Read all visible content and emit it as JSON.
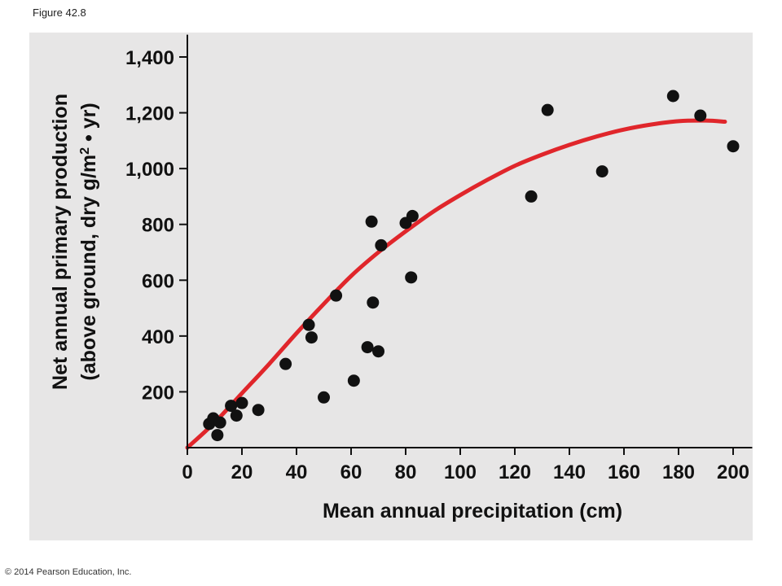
{
  "figure_label": "Figure 42.8",
  "copyright": "© 2014 Pearson Education, Inc.",
  "colors": {
    "panel": "#e7e6e6",
    "curve": "#e0262b",
    "points": "#111111",
    "axis": "#111111"
  },
  "chart_data": {
    "type": "scatter",
    "title": "",
    "xlabel": "Mean annual precipitation (cm)",
    "ylabel_line1": "Net annual primary production",
    "ylabel_line2_prefix": "(above ground, dry g/m",
    "ylabel_line2_sup": "2",
    "ylabel_line2_suffix": " • yr)",
    "xlim": [
      0,
      207
    ],
    "ylim": [
      0,
      1480
    ],
    "xticks": [
      0,
      20,
      40,
      60,
      80,
      100,
      120,
      140,
      160,
      180,
      200
    ],
    "xtick_labels": [
      "0",
      "20",
      "40",
      "60",
      "80",
      "100",
      "120",
      "140",
      "160",
      "180",
      "200"
    ],
    "yticks": [
      200,
      400,
      600,
      800,
      1000,
      1200,
      1400
    ],
    "ytick_labels": [
      "200",
      "400",
      "600",
      "800",
      "1,000",
      "1,200",
      "1,400"
    ],
    "grid": false,
    "points": [
      [
        8,
        85
      ],
      [
        9.5,
        105
      ],
      [
        11,
        45
      ],
      [
        12,
        90
      ],
      [
        16,
        150
      ],
      [
        18,
        115
      ],
      [
        20,
        160
      ],
      [
        26,
        135
      ],
      [
        36,
        300
      ],
      [
        44.5,
        440
      ],
      [
        45.5,
        395
      ],
      [
        50,
        180
      ],
      [
        54.5,
        545
      ],
      [
        61,
        240
      ],
      [
        66,
        360
      ],
      [
        67.5,
        810
      ],
      [
        68,
        520
      ],
      [
        70,
        345
      ],
      [
        71,
        725
      ],
      [
        80,
        805
      ],
      [
        82.5,
        830
      ],
      [
        82,
        610
      ],
      [
        126,
        900
      ],
      [
        132,
        1210
      ],
      [
        152,
        990
      ],
      [
        178,
        1260
      ],
      [
        188,
        1190
      ],
      [
        200,
        1080
      ]
    ],
    "trend_curve": [
      [
        0,
        0
      ],
      [
        10,
        90
      ],
      [
        20,
        195
      ],
      [
        30,
        300
      ],
      [
        40,
        410
      ],
      [
        50,
        515
      ],
      [
        60,
        615
      ],
      [
        70,
        700
      ],
      [
        80,
        775
      ],
      [
        90,
        845
      ],
      [
        100,
        905
      ],
      [
        110,
        960
      ],
      [
        120,
        1010
      ],
      [
        130,
        1050
      ],
      [
        140,
        1085
      ],
      [
        150,
        1115
      ],
      [
        160,
        1140
      ],
      [
        170,
        1158
      ],
      [
        180,
        1170
      ],
      [
        190,
        1172
      ],
      [
        197,
        1168
      ]
    ]
  }
}
